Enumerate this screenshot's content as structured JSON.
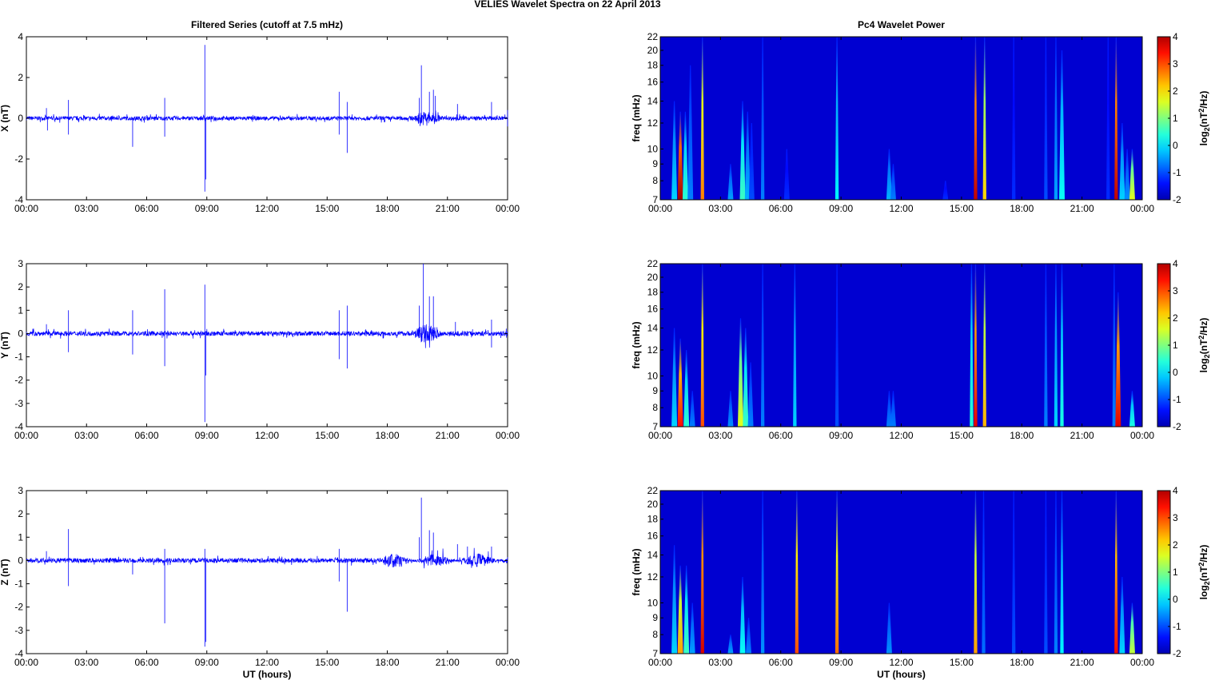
{
  "title": "VELIES Wavelet Spectra on 22 April     2013",
  "chart_data": [
    {
      "type": "line",
      "title": "Filtered Series (cutoff at 7.5 mHz)",
      "ylabel": "X (nT)",
      "xlabel": "",
      "ylim": [
        -4,
        4
      ],
      "yticks": [
        -4,
        -2,
        0,
        2,
        4
      ],
      "noise": 0.1,
      "xlim_hours": [
        0,
        24
      ],
      "xticks": [
        "00:00",
        "03:00",
        "06:00",
        "09:00",
        "12:00",
        "15:00",
        "18:00",
        "21:00",
        "00:00"
      ],
      "spikes": [
        [
          1.0,
          0.5
        ],
        [
          1.05,
          -0.6
        ],
        [
          2.1,
          0.9
        ],
        [
          2.1,
          -0.8
        ],
        [
          5.3,
          -1.4
        ],
        [
          6.9,
          1.0
        ],
        [
          6.9,
          -0.9
        ],
        [
          8.9,
          3.6
        ],
        [
          8.9,
          -3.6
        ],
        [
          8.95,
          -3.0
        ],
        [
          15.6,
          1.3
        ],
        [
          15.6,
          -0.8
        ],
        [
          16.0,
          -1.7
        ],
        [
          16.0,
          0.8
        ],
        [
          19.7,
          2.6
        ],
        [
          19.6,
          1.0
        ],
        [
          20.1,
          1.3
        ],
        [
          20.3,
          1.4
        ],
        [
          20.4,
          1.1
        ],
        [
          21.5,
          0.7
        ],
        [
          23.2,
          0.8
        ],
        [
          24.0,
          0.4
        ],
        [
          24.0,
          -0.4
        ]
      ],
      "burst": [
        19.4,
        21.0,
        0.35
      ]
    },
    {
      "type": "line",
      "title": "",
      "ylabel": "Y (nT)",
      "xlabel": "",
      "ylim": [
        -4,
        3
      ],
      "yticks": [
        -4,
        -3,
        -2,
        -1,
        0,
        1,
        2,
        3
      ],
      "noise": 0.1,
      "spikes": [
        [
          1.0,
          0.4
        ],
        [
          2.1,
          1.0
        ],
        [
          2.1,
          -0.8
        ],
        [
          5.3,
          1.0
        ],
        [
          5.3,
          -0.9
        ],
        [
          6.9,
          1.9
        ],
        [
          6.9,
          -1.4
        ],
        [
          8.9,
          2.1
        ],
        [
          8.9,
          -3.8
        ],
        [
          8.95,
          -1.8
        ],
        [
          15.6,
          1.0
        ],
        [
          15.6,
          -1.1
        ],
        [
          16.0,
          1.2
        ],
        [
          16.0,
          -1.5
        ],
        [
          19.8,
          3.0
        ],
        [
          19.6,
          1.2
        ],
        [
          20.1,
          1.6
        ],
        [
          20.3,
          1.6
        ],
        [
          21.4,
          0.5
        ],
        [
          23.2,
          0.6
        ],
        [
          23.2,
          -0.6
        ]
      ],
      "burst": [
        19.4,
        21.0,
        0.4
      ]
    },
    {
      "type": "line",
      "title": "",
      "ylabel": "Z (nT)",
      "xlabel": "UT (hours)",
      "ylim": [
        -4,
        3
      ],
      "yticks": [
        -4,
        -3,
        -2,
        -1,
        0,
        1,
        2,
        3
      ],
      "noise": 0.1,
      "spikes": [
        [
          1.0,
          0.4
        ],
        [
          2.1,
          1.35
        ],
        [
          2.1,
          -1.1
        ],
        [
          5.3,
          -0.6
        ],
        [
          6.9,
          0.5
        ],
        [
          6.9,
          -2.7
        ],
        [
          8.9,
          0.5
        ],
        [
          8.9,
          -3.7
        ],
        [
          8.95,
          -3.5
        ],
        [
          15.6,
          0.5
        ],
        [
          15.6,
          -0.9
        ],
        [
          16.0,
          -2.2
        ],
        [
          19.7,
          2.7
        ],
        [
          19.6,
          1.0
        ],
        [
          20.1,
          1.3
        ],
        [
          20.3,
          1.2
        ],
        [
          21.5,
          0.7
        ],
        [
          22.0,
          0.6
        ],
        [
          23.2,
          0.6
        ]
      ],
      "burst": [
        17.8,
        24.0,
        0.3
      ]
    },
    {
      "type": "heatmap",
      "title": "Pc4 Wavelet Power",
      "ylabel": "freq (mHz)",
      "xlabel": "",
      "ylim_mHz": [
        7,
        22
      ],
      "yscale": "log",
      "yticks": [
        7,
        8,
        9,
        10,
        12,
        14,
        16,
        18,
        20,
        22
      ],
      "colorbar": {
        "label": "log2(nT2/Hz)",
        "ticks": [
          -2,
          -1,
          0,
          1,
          2,
          3,
          4
        ],
        "range": [
          -2,
          4
        ]
      },
      "events": [
        [
          0.7,
          14,
          0
        ],
        [
          1.0,
          13,
          3.8
        ],
        [
          1.25,
          13,
          0.5
        ],
        [
          1.5,
          18,
          -0.5
        ],
        [
          2.1,
          22,
          2.5
        ],
        [
          3.5,
          9,
          -0.3
        ],
        [
          4.1,
          14,
          0.6
        ],
        [
          4.35,
          13,
          -0.2
        ],
        [
          4.55,
          12,
          -0.8
        ],
        [
          5.1,
          22,
          -0.5
        ],
        [
          6.3,
          10,
          -1
        ],
        [
          8.8,
          22,
          0.2
        ],
        [
          11.4,
          10,
          -0.2
        ],
        [
          11.6,
          9,
          -0.5
        ],
        [
          14.2,
          8,
          -1
        ],
        [
          15.7,
          22,
          3.6
        ],
        [
          16.15,
          22,
          2
        ],
        [
          17.6,
          22,
          -1
        ],
        [
          19.2,
          22,
          -0.8
        ],
        [
          19.7,
          22,
          -0.3
        ],
        [
          20.0,
          20,
          0.3
        ],
        [
          22.3,
          22,
          -1
        ],
        [
          22.7,
          22,
          3.6
        ],
        [
          23.0,
          12,
          0
        ],
        [
          23.25,
          10,
          -0.4
        ],
        [
          23.5,
          10,
          1.6
        ]
      ]
    },
    {
      "type": "heatmap",
      "title": "",
      "ylabel": "freq (mHz)",
      "xlabel": "",
      "ylim_mHz": [
        7,
        22
      ],
      "yscale": "log",
      "yticks": [
        7,
        8,
        9,
        10,
        12,
        14,
        16,
        18,
        20,
        22
      ],
      "colorbar": {
        "label": "log2(nT2/Hz)",
        "ticks": [
          -2,
          -1,
          0,
          1,
          2,
          3,
          4
        ],
        "range": [
          -2,
          4
        ]
      },
      "events": [
        [
          0.7,
          14,
          0
        ],
        [
          1.0,
          13,
          3.2
        ],
        [
          1.3,
          12,
          0.5
        ],
        [
          1.6,
          9,
          -0.5
        ],
        [
          2.1,
          22,
          2.8
        ],
        [
          3.5,
          9,
          -0.4
        ],
        [
          4.0,
          15,
          1.6
        ],
        [
          4.25,
          14,
          0.6
        ],
        [
          4.5,
          11,
          -0.5
        ],
        [
          5.1,
          22,
          -0.5
        ],
        [
          6.7,
          22,
          0
        ],
        [
          8.8,
          22,
          -0.8
        ],
        [
          11.4,
          9,
          -0.5
        ],
        [
          11.6,
          9,
          -0.5
        ],
        [
          15.5,
          22,
          0.5
        ],
        [
          15.7,
          22,
          3.4
        ],
        [
          16.15,
          22,
          2.2
        ],
        [
          19.2,
          22,
          -0.5
        ],
        [
          19.7,
          22,
          0
        ],
        [
          20.0,
          22,
          0.4
        ],
        [
          22.6,
          22,
          -0.5
        ],
        [
          22.8,
          18,
          3.4
        ],
        [
          23.5,
          9,
          0.4
        ]
      ]
    },
    {
      "type": "heatmap",
      "title": "",
      "ylabel": "freq (mHz)",
      "xlabel": "UT (hours)",
      "ylim_mHz": [
        7,
        22
      ],
      "yscale": "log",
      "yticks": [
        7,
        8,
        9,
        10,
        12,
        14,
        16,
        18,
        20,
        22
      ],
      "colorbar": {
        "label": "log2(nT2/Hz)",
        "ticks": [
          -2,
          -1,
          0,
          1,
          2,
          3,
          4
        ],
        "range": [
          -2,
          4
        ]
      },
      "events": [
        [
          0.7,
          15,
          0
        ],
        [
          1.0,
          13,
          2.3
        ],
        [
          1.3,
          13,
          0.6
        ],
        [
          1.6,
          10,
          -0.3
        ],
        [
          2.1,
          22,
          3.5
        ],
        [
          3.5,
          8,
          -0.3
        ],
        [
          4.1,
          12,
          0.3
        ],
        [
          4.4,
          9,
          -0.5
        ],
        [
          5.1,
          22,
          -0.4
        ],
        [
          6.8,
          22,
          2.8
        ],
        [
          8.8,
          22,
          2.6
        ],
        [
          11.4,
          10,
          -0.4
        ],
        [
          15.7,
          22,
          2.3
        ],
        [
          16.1,
          22,
          -0.6
        ],
        [
          17.6,
          22,
          -0.8
        ],
        [
          19.2,
          22,
          -0.8
        ],
        [
          19.7,
          22,
          -0.5
        ],
        [
          20.0,
          22,
          0.2
        ],
        [
          22.7,
          22,
          3.2
        ],
        [
          23.0,
          12,
          0
        ],
        [
          23.5,
          10,
          1.4
        ]
      ]
    }
  ]
}
